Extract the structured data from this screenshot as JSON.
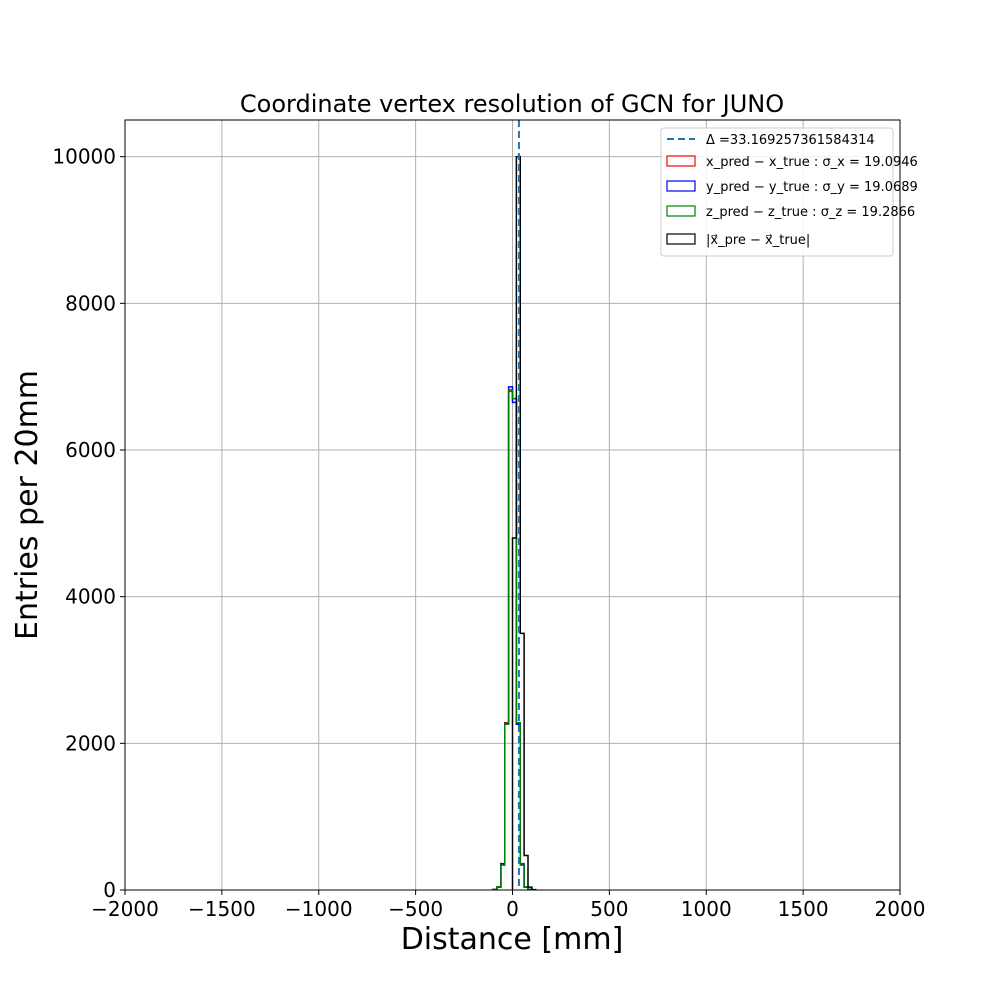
{
  "chart_data": {
    "type": "histogram",
    "title": "Coordinate vertex resolution of GCN for JUNO",
    "xlabel": "Distance [mm]",
    "ylabel": "Entries per 20mm",
    "xlim": [
      -2000,
      2000
    ],
    "ylim": [
      0,
      10500
    ],
    "xticks": [
      -2000,
      -1500,
      -1000,
      -500,
      0,
      500,
      1000,
      1500,
      2000
    ],
    "yticks": [
      0,
      2000,
      4000,
      6000,
      8000,
      10000
    ],
    "bin_width": 20,
    "grid": true,
    "legend_position": "top-right",
    "vline": {
      "x": 33.169257361584314,
      "label": "Δ =33.169257361584314",
      "color": "#1f77b4",
      "style": "dashed"
    },
    "series": [
      {
        "name": "x_pred − x_true :  σ_x = 19.0946",
        "color": "#ff0000",
        "bins": [
          [
            -100,
            -80,
            10
          ],
          [
            -80,
            -60,
            40
          ],
          [
            -60,
            -40,
            350
          ],
          [
            -40,
            -20,
            2280
          ],
          [
            -20,
            0,
            6800
          ],
          [
            0,
            20,
            6700
          ],
          [
            20,
            40,
            2280
          ],
          [
            40,
            60,
            360
          ],
          [
            60,
            80,
            40
          ],
          [
            80,
            100,
            8
          ]
        ]
      },
      {
        "name": "y_pred − y_true :  σ_y = 19.0689",
        "color": "#0000ff",
        "bins": [
          [
            -100,
            -80,
            10
          ],
          [
            -80,
            -60,
            40
          ],
          [
            -60,
            -40,
            360
          ],
          [
            -40,
            -20,
            2270
          ],
          [
            -20,
            0,
            6860
          ],
          [
            0,
            20,
            6650
          ],
          [
            20,
            40,
            2260
          ],
          [
            40,
            60,
            350
          ],
          [
            60,
            80,
            40
          ],
          [
            80,
            100,
            8
          ]
        ]
      },
      {
        "name": "z_pred − z_true :  σ_z = 19.2866",
        "color": "#008000",
        "bins": [
          [
            -100,
            -80,
            10
          ],
          [
            -80,
            -60,
            45
          ],
          [
            -60,
            -40,
            340
          ],
          [
            -40,
            -20,
            2260
          ],
          [
            -20,
            0,
            6820
          ],
          [
            0,
            20,
            6700
          ],
          [
            20,
            40,
            2280
          ],
          [
            40,
            60,
            340
          ],
          [
            60,
            80,
            45
          ],
          [
            80,
            100,
            10
          ]
        ]
      },
      {
        "name": "|x⃗_pre − x⃗_true|",
        "color": "#000000",
        "bins": [
          [
            0,
            20,
            4800
          ],
          [
            20,
            40,
            10000
          ],
          [
            40,
            60,
            3500
          ],
          [
            60,
            80,
            470
          ],
          [
            80,
            100,
            40
          ],
          [
            100,
            120,
            5
          ]
        ]
      }
    ]
  }
}
